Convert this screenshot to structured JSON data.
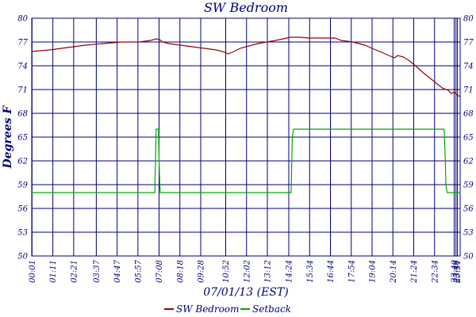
{
  "chart_data": {
    "type": "line",
    "title": "SW Bedroom",
    "xlabel": "07/01/13 (EST)",
    "ylabel": "Degrees F",
    "ylim": [
      50,
      80
    ],
    "yticks": [
      50,
      53,
      56,
      59,
      62,
      65,
      68,
      71,
      74,
      77,
      80
    ],
    "xlim": [
      0,
      1440
    ],
    "x_tick_labels": [
      "00:01",
      "01:11",
      "02:21",
      "03:37",
      "04:47",
      "05:57",
      "07:08",
      "08:18",
      "09:28",
      "10:52",
      "12:02",
      "13:12",
      "14:24",
      "15:34",
      "16:44",
      "17:54",
      "19:04",
      "20:14",
      "21:24",
      "22:34",
      "23:40",
      "23:46",
      "23:51"
    ],
    "x_tick_minutes": [
      1,
      71,
      141,
      217,
      287,
      357,
      428,
      498,
      568,
      652,
      722,
      792,
      864,
      934,
      1004,
      1074,
      1144,
      1214,
      1284,
      1354,
      1420,
      1426,
      1431
    ],
    "grid": true,
    "legend_position": "bottom-center",
    "series": [
      {
        "name": "SW Bedroom",
        "color": "#990000",
        "x": [
          0,
          60,
          120,
          180,
          240,
          300,
          360,
          400,
          420,
          430,
          440,
          460,
          500,
          560,
          620,
          650,
          660,
          680,
          700,
          760,
          820,
          870,
          900,
          930,
          960,
          990,
          1020,
          1040,
          1080,
          1120,
          1150,
          1170,
          1200,
          1220,
          1230,
          1250,
          1270,
          1290,
          1310,
          1340,
          1360,
          1380,
          1400,
          1410,
          1420,
          1430,
          1440
        ],
        "y": [
          75.8,
          76.0,
          76.3,
          76.6,
          76.8,
          77.0,
          77.0,
          77.2,
          77.4,
          77.3,
          77.0,
          76.8,
          76.6,
          76.3,
          76.0,
          75.7,
          75.5,
          75.8,
          76.2,
          76.8,
          77.2,
          77.6,
          77.6,
          77.5,
          77.5,
          77.5,
          77.5,
          77.2,
          77.0,
          76.6,
          76.1,
          75.8,
          75.3,
          75.0,
          75.3,
          75.1,
          74.6,
          74.0,
          73.3,
          72.4,
          71.8,
          71.2,
          70.9,
          70.5,
          70.7,
          70.3,
          70.1
        ]
      },
      {
        "name": "Setback",
        "color": "#00aa00",
        "x": [
          0,
          414,
          414,
          416,
          418,
          420,
          426,
          428,
          430,
          432,
          436,
          872,
          874,
          876,
          880,
          1386,
          1390,
          1392,
          1396,
          1440
        ],
        "y": [
          58,
          58,
          59.5,
          62,
          66,
          66,
          66,
          62,
          59.5,
          58,
          58,
          58,
          62,
          65,
          66,
          66,
          62,
          59,
          58,
          58
        ]
      }
    ]
  }
}
